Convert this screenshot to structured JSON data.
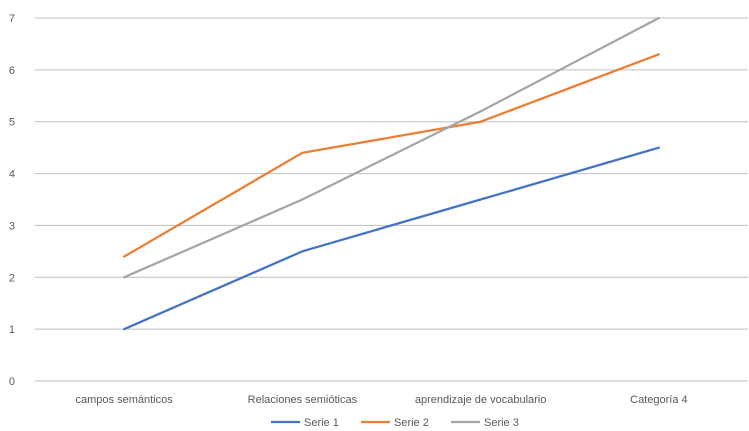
{
  "chart_data": {
    "type": "line",
    "title": "",
    "xlabel": "",
    "ylabel": "",
    "categories": [
      "campos semánticos",
      "Relaciones semióticas",
      "aprendizaje de vocabulario",
      "Categoría 4"
    ],
    "ylim": [
      0,
      7
    ],
    "yticks": [
      0,
      1,
      2,
      3,
      4,
      5,
      6,
      7
    ],
    "grid": true,
    "legend": "bottom",
    "series": [
      {
        "name": "Serie 1",
        "color": "#4472c4",
        "values": [
          1,
          2.5,
          3.5,
          4.5
        ]
      },
      {
        "name": "Serie 2",
        "color": "#ed7d31",
        "values": [
          2.4,
          4.4,
          5,
          6.3
        ]
      },
      {
        "name": "Serie 3",
        "color": "#a5a5a5",
        "values": [
          2,
          3.5,
          5.2,
          7
        ]
      }
    ]
  }
}
